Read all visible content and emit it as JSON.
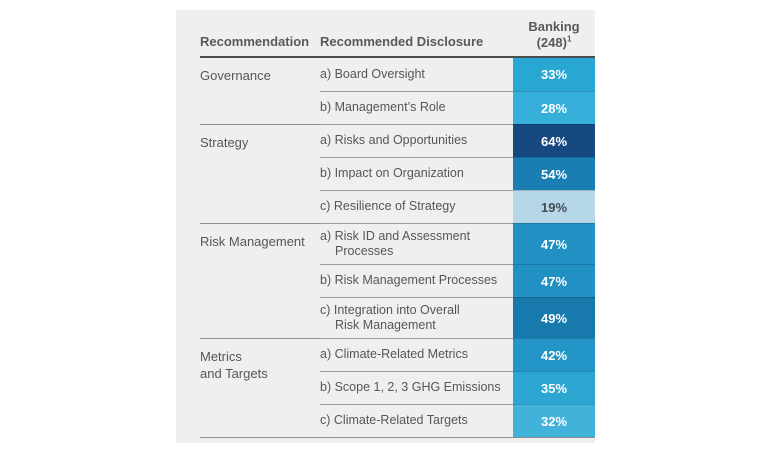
{
  "header": {
    "recommendation": "Recommendation",
    "disclosure": "Recommended Disclosure",
    "banking_line1": "Banking",
    "banking_line2": "(248)",
    "banking_footnote_marker": "1"
  },
  "colors": {
    "panel_bg": "#EFEFF0",
    "header_rule": "#4B4C4E",
    "separator": "#909296",
    "body_text": "#55565A"
  },
  "sections": [
    {
      "recommendation": "Governance",
      "rows": [
        {
          "disclosure": "a) Board Oversight",
          "value": "33%",
          "bg": "#29A7D3",
          "text_color": "#FFFFFF"
        },
        {
          "disclosure": "b) Management’s Role",
          "value": "28%",
          "bg": "#36B0DB",
          "text_color": "#FFFFFF"
        }
      ]
    },
    {
      "recommendation": "Strategy",
      "rows": [
        {
          "disclosure": "a) Risks and Opportunities",
          "value": "64%",
          "bg": "#16497F",
          "text_color": "#FFFFFF"
        },
        {
          "disclosure": "b) Impact on Organization",
          "value": "54%",
          "bg": "#1A7EB2",
          "text_color": "#FFFFFF"
        },
        {
          "disclosure": "c) Resilience of Strategy",
          "value": "19%",
          "bg": "#B5D7E8",
          "text_color": "#454C54"
        }
      ]
    },
    {
      "recommendation": "Risk Management",
      "rows": [
        {
          "disclosure": "a) Risk ID and Assessment\nProcesses",
          "value": "47%",
          "bg": "#2191C3",
          "text_color": "#FFFFFF"
        },
        {
          "disclosure": "b) Risk Management Processes",
          "value": "47%",
          "bg": "#2191C3",
          "text_color": "#FFFFFF"
        },
        {
          "disclosure": "c) Integration into Overall\nRisk Management",
          "value": "49%",
          "bg": "#1879AC",
          "text_color": "#FFFFFF"
        }
      ]
    },
    {
      "recommendation": "Metrics\nand Targets",
      "rows": [
        {
          "disclosure": "a) Climate-Related Metrics",
          "value": "42%",
          "bg": "#2495C7",
          "text_color": "#FFFFFF"
        },
        {
          "disclosure": "b) Scope 1, 2, 3 GHG Emissions",
          "value": "35%",
          "bg": "#2DA5D1",
          "text_color": "#FFFFFF"
        },
        {
          "disclosure": "c) Climate-Related Targets",
          "value": "32%",
          "bg": "#41B2DA",
          "text_color": "#FFFFFF"
        }
      ]
    }
  ],
  "chart_data": {
    "type": "heatmap",
    "title": "",
    "columns": [
      "Recommendation",
      "Recommended Disclosure",
      "Banking (248)¹"
    ],
    "value_unit": "%",
    "rows": [
      {
        "recommendation": "Governance",
        "disclosure": "a) Board Oversight",
        "banking_pct": 33
      },
      {
        "recommendation": "Governance",
        "disclosure": "b) Management’s Role",
        "banking_pct": 28
      },
      {
        "recommendation": "Strategy",
        "disclosure": "a) Risks and Opportunities",
        "banking_pct": 64
      },
      {
        "recommendation": "Strategy",
        "disclosure": "b) Impact on Organization",
        "banking_pct": 54
      },
      {
        "recommendation": "Strategy",
        "disclosure": "c) Resilience of Strategy",
        "banking_pct": 19
      },
      {
        "recommendation": "Risk Management",
        "disclosure": "a) Risk ID and Assessment Processes",
        "banking_pct": 47
      },
      {
        "recommendation": "Risk Management",
        "disclosure": "b) Risk Management Processes",
        "banking_pct": 47
      },
      {
        "recommendation": "Risk Management",
        "disclosure": "c) Integration into Overall Risk Management",
        "banking_pct": 49
      },
      {
        "recommendation": "Metrics and Targets",
        "disclosure": "a) Climate-Related Metrics",
        "banking_pct": 42
      },
      {
        "recommendation": "Metrics and Targets",
        "disclosure": "b) Scope 1, 2, 3 GHG Emissions",
        "banking_pct": 35
      },
      {
        "recommendation": "Metrics and Targets",
        "disclosure": "c) Climate-Related Targets",
        "banking_pct": 32
      }
    ],
    "layout_hints": {
      "value_column_is_heatmap": true,
      "color_scale": "darker blue = higher percentage",
      "sample_size": 248
    }
  }
}
